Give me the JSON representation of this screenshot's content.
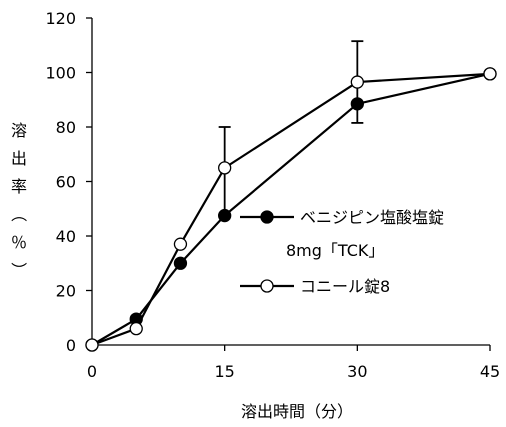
{
  "chart_data": {
    "type": "line",
    "xlabel": "溶出時間（分）",
    "ylabel": [
      "溶",
      "出",
      "率",
      "（",
      "％",
      "）"
    ],
    "x_ticks": [
      0,
      15,
      30,
      45
    ],
    "y_ticks": [
      0,
      20,
      40,
      60,
      80,
      100,
      120
    ],
    "xlim": [
      0,
      45
    ],
    "ylim": [
      0,
      120
    ],
    "grid": false,
    "legend_position": "right",
    "x": [
      0,
      5,
      10,
      15,
      30,
      45
    ],
    "series": [
      {
        "name_lines": [
          "ベニジピン塩酸塩錠",
          "8mg「TCK」"
        ],
        "marker": "filled-circle",
        "color": "#000000",
        "values": [
          0,
          9.5,
          30,
          47.5,
          88.5,
          99.5
        ]
      },
      {
        "name_lines": [
          "コニール錠8"
        ],
        "marker": "open-circle",
        "color": "#000000",
        "values": [
          0,
          6,
          37,
          65,
          96.5,
          99.5
        ],
        "error_bars": [
          {
            "x": 15,
            "low": 47,
            "high": 80
          },
          {
            "x": 30,
            "low": 81.5,
            "high": 111.5
          }
        ]
      }
    ]
  }
}
